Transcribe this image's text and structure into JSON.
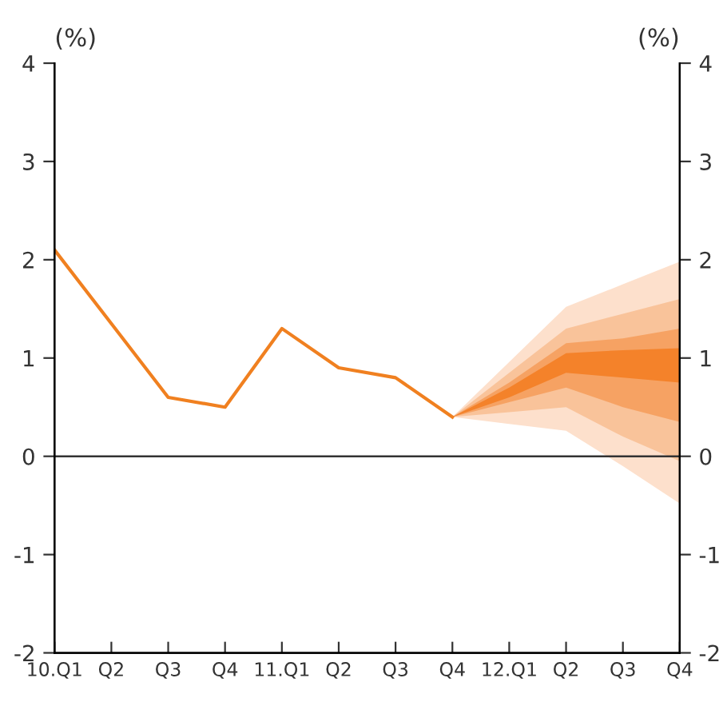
{
  "chart_data": {
    "type": "line",
    "ylabel": "(%)",
    "y2label": "(%)",
    "categories": [
      "10.Q1",
      "Q2",
      "Q3",
      "Q4",
      "11.Q1",
      "Q2",
      "Q3",
      "Q4",
      "12.Q1",
      "Q2",
      "Q3",
      "Q4"
    ],
    "series": [
      {
        "type": "line",
        "color": "#fde0cc",
        "values": [
          null,
          null,
          null,
          null,
          null,
          null,
          null,
          null,
          null,
          null,
          null,
          null
        ],
        "lower": [
          null,
          null,
          null,
          null,
          null,
          null,
          null,
          0.4,
          0.33,
          0.26,
          -0.1,
          -0.48
        ],
        "upper": [
          null,
          null,
          null,
          null,
          null,
          null,
          null,
          0.4,
          0.96,
          1.52,
          1.75,
          1.98
        ]
      },
      {
        "type": "line",
        "color": "#f9c39a",
        "values": [
          null,
          null,
          null,
          null,
          null,
          null,
          null,
          null,
          null,
          null,
          null,
          null
        ],
        "lower": [
          null,
          null,
          null,
          null,
          null,
          null,
          null,
          0.4,
          0.45,
          0.5,
          0.2,
          -0.05
        ],
        "upper": [
          null,
          null,
          null,
          null,
          null,
          null,
          null,
          0.4,
          0.85,
          1.3,
          1.45,
          1.6
        ]
      },
      {
        "type": "line",
        "color": "#f6a263",
        "values": [
          null,
          null,
          null,
          null,
          null,
          null,
          null,
          null,
          null,
          null,
          null,
          null
        ],
        "lower": [
          null,
          null,
          null,
          null,
          null,
          null,
          null,
          0.4,
          0.55,
          0.7,
          0.5,
          0.35
        ],
        "upper": [
          null,
          null,
          null,
          null,
          null,
          null,
          null,
          0.4,
          0.75,
          1.15,
          1.2,
          1.3
        ]
      },
      {
        "type": "line",
        "color": "#f4822a",
        "values": [
          null,
          null,
          null,
          null,
          null,
          null,
          null,
          null,
          null,
          null,
          null,
          null
        ],
        "lower": [
          null,
          null,
          null,
          null,
          null,
          null,
          null,
          0.4,
          0.6,
          0.85,
          0.8,
          0.75
        ],
        "upper": [
          null,
          null,
          null,
          null,
          null,
          null,
          null,
          0.4,
          0.7,
          1.05,
          1.08,
          1.1
        ]
      },
      {
        "type": "line",
        "color": "#f08020",
        "values": [
          2.1,
          1.35,
          0.6,
          0.5,
          1.3,
          0.9,
          0.8,
          0.4,
          null,
          null,
          null,
          null
        ]
      }
    ],
    "ylim": [
      -2,
      4
    ],
    "yticks": [
      -2,
      -1,
      0,
      1,
      2,
      3,
      4
    ],
    "y2lim": [
      -2,
      4
    ],
    "y2ticks": [
      -2,
      -1,
      0,
      1,
      2,
      3,
      4
    ],
    "ref_lines": [
      {
        "axis": "y",
        "value": 0,
        "color": "#333333"
      }
    ],
    "grid": false,
    "legend": false,
    "marker": "none",
    "line_style": "solid"
  }
}
